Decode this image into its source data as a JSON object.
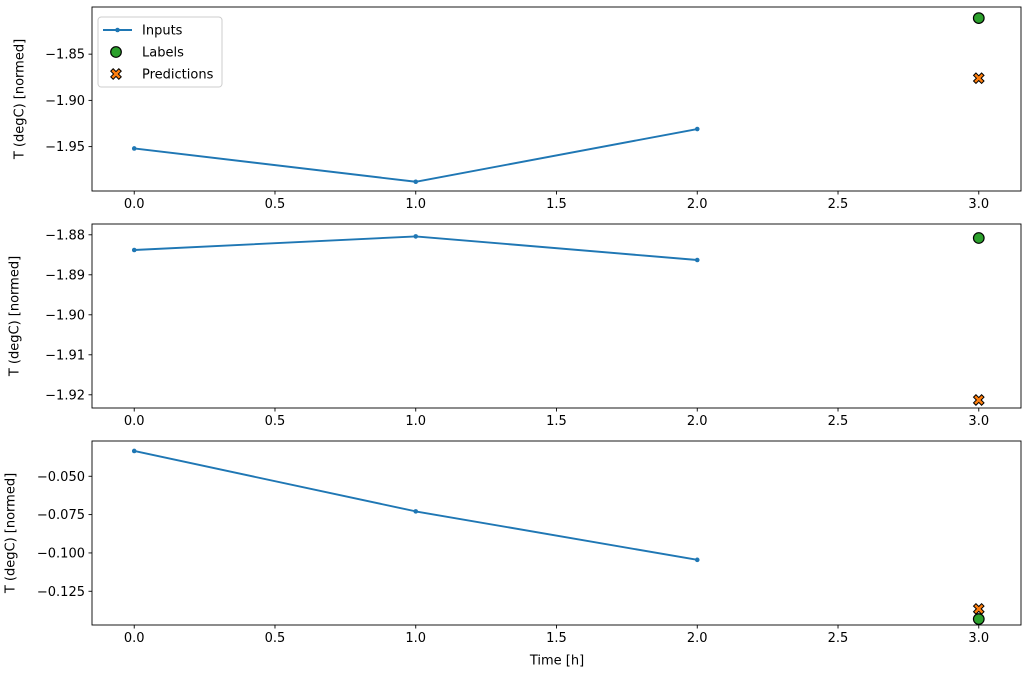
{
  "figure": {
    "background": "#ffffff",
    "xlabel": "Time [h]",
    "spine_color": "#000000"
  },
  "legend": {
    "position": "upper left",
    "entries": [
      {
        "label": "Inputs",
        "marker": "line-dot",
        "color": "#1f77b4"
      },
      {
        "label": "Labels",
        "marker": "circle",
        "color": "#2ca02c",
        "edge": "#000000"
      },
      {
        "label": "Predictions",
        "marker": "X",
        "color": "#ff7f0e",
        "edge": "#000000"
      }
    ]
  },
  "chart_data": [
    {
      "type": "line",
      "ylabel": "T (degC) [normed]",
      "xlabel": "",
      "xlim": [
        -0.15,
        3.15
      ],
      "ylim": [
        -1.998,
        -1.799
      ],
      "x_ticks": [
        0.0,
        0.5,
        1.0,
        1.5,
        2.0,
        2.5,
        3.0
      ],
      "x_tick_labels": [
        "0.0",
        "0.5",
        "1.0",
        "1.5",
        "2.0",
        "2.5",
        "3.0"
      ],
      "y_ticks": [
        -1.85,
        -1.9,
        -1.95
      ],
      "y_tick_labels": [
        "−1.85",
        "−1.90",
        "−1.95"
      ],
      "legend_visible": true,
      "series": [
        {
          "name": "Inputs",
          "kind": "line",
          "marker": "dot",
          "color": "#1f77b4",
          "x": [
            0,
            1,
            2
          ],
          "y": [
            -1.952,
            -1.988,
            -1.931
          ]
        },
        {
          "name": "Labels",
          "kind": "scatter",
          "marker": "circle",
          "color": "#2ca02c",
          "edge": "#000000",
          "x": [
            3
          ],
          "y": [
            -1.811
          ]
        },
        {
          "name": "Predictions",
          "kind": "scatter",
          "marker": "X",
          "color": "#ff7f0e",
          "edge": "#000000",
          "x": [
            3
          ],
          "y": [
            -1.876
          ]
        }
      ]
    },
    {
      "type": "line",
      "ylabel": "T (degC) [normed]",
      "xlabel": "",
      "xlim": [
        -0.15,
        3.15
      ],
      "ylim": [
        -1.9233,
        -1.8773
      ],
      "x_ticks": [
        0.0,
        0.5,
        1.0,
        1.5,
        2.0,
        2.5,
        3.0
      ],
      "x_tick_labels": [
        "0.0",
        "0.5",
        "1.0",
        "1.5",
        "2.0",
        "2.5",
        "3.0"
      ],
      "y_ticks": [
        -1.88,
        -1.89,
        -1.9,
        -1.91,
        -1.92
      ],
      "y_tick_labels": [
        "−1.88",
        "−1.89",
        "−1.90",
        "−1.91",
        "−1.92"
      ],
      "legend_visible": false,
      "series": [
        {
          "name": "Inputs",
          "kind": "line",
          "marker": "dot",
          "color": "#1f77b4",
          "x": [
            0,
            1,
            2
          ],
          "y": [
            -1.8838,
            -1.8804,
            -1.8863
          ]
        },
        {
          "name": "Labels",
          "kind": "scatter",
          "marker": "circle",
          "color": "#2ca02c",
          "edge": "#000000",
          "x": [
            3
          ],
          "y": [
            -1.8808
          ]
        },
        {
          "name": "Predictions",
          "kind": "scatter",
          "marker": "X",
          "color": "#ff7f0e",
          "edge": "#000000",
          "x": [
            3
          ],
          "y": [
            -1.9213
          ]
        }
      ]
    },
    {
      "type": "line",
      "ylabel": "T (degC) [normed]",
      "xlabel": "Time [h]",
      "xlim": [
        -0.15,
        3.15
      ],
      "ylim": [
        -0.147,
        -0.027
      ],
      "x_ticks": [
        0.0,
        0.5,
        1.0,
        1.5,
        2.0,
        2.5,
        3.0
      ],
      "x_tick_labels": [
        "0.0",
        "0.5",
        "1.0",
        "1.5",
        "2.0",
        "2.5",
        "3.0"
      ],
      "y_ticks": [
        -0.05,
        -0.075,
        -0.1,
        -0.125
      ],
      "y_tick_labels": [
        "−0.050",
        "−0.075",
        "−0.100",
        "−0.125"
      ],
      "legend_visible": false,
      "series": [
        {
          "name": "Inputs",
          "kind": "line",
          "marker": "dot",
          "color": "#1f77b4",
          "x": [
            0,
            1,
            2
          ],
          "y": [
            -0.0335,
            -0.0729,
            -0.1045
          ]
        },
        {
          "name": "Labels",
          "kind": "scatter",
          "marker": "circle",
          "color": "#2ca02c",
          "edge": "#000000",
          "x": [
            3
          ],
          "y": [
            -0.1431
          ]
        },
        {
          "name": "Predictions",
          "kind": "scatter",
          "marker": "X",
          "color": "#ff7f0e",
          "edge": "#000000",
          "x": [
            3
          ],
          "y": [
            -0.1365
          ]
        }
      ]
    }
  ]
}
